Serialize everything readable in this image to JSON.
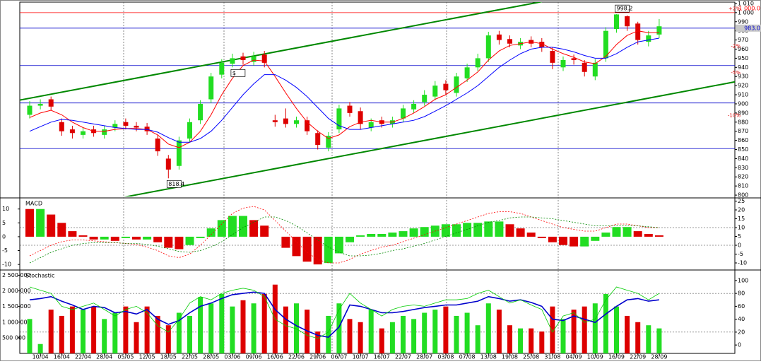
{
  "chart_data": {
    "type": "candlestick",
    "categories": [
      null,
      "10/04",
      null,
      "16/04",
      null,
      "22/04",
      null,
      "28/04",
      null,
      "05/05",
      null,
      "12/05",
      null,
      "18/05",
      null,
      "22/05",
      null,
      "28/05",
      null,
      "03/06",
      null,
      "09/06",
      null,
      "16/06",
      null,
      "22/06",
      null,
      "29/06",
      null,
      "06/07",
      null,
      "10/07",
      null,
      "16/07",
      null,
      "22/07",
      null,
      "28/07",
      null,
      "03/08",
      null,
      "07/08",
      null,
      "13/08",
      null,
      "19/08",
      null,
      "25/08",
      null,
      "31/08",
      null,
      "04/09",
      null,
      "10/09",
      null,
      "16/09",
      null,
      "22/09",
      null,
      "28/09"
    ],
    "open": [
      888,
      898,
      905,
      880,
      872,
      866,
      872,
      866,
      874,
      880,
      876,
      875,
      862,
      840,
      832,
      862,
      882,
      905,
      932,
      944,
      952,
      946,
      954,
      882,
      884,
      878,
      882,
      868,
      852,
      872,
      898,
      892,
      874,
      882,
      878,
      884,
      894,
      902,
      908,
      922,
      912,
      928,
      940,
      950,
      976,
      971,
      964,
      970,
      968,
      958,
      940,
      950,
      945,
      930,
      950,
      982,
      996,
      988,
      968,
      976
    ],
    "high": [
      903,
      905,
      908,
      884,
      876,
      874,
      876,
      876,
      882,
      884,
      880,
      879,
      866,
      844,
      864,
      884,
      904,
      934,
      949,
      955,
      956,
      957,
      958,
      888,
      895,
      886,
      886,
      871,
      869,
      899,
      902,
      896,
      884,
      886,
      886,
      899,
      904,
      915,
      925,
      926,
      934,
      944,
      955,
      979,
      980,
      975,
      972,
      974,
      972,
      962,
      952,
      954,
      948,
      949,
      984,
      998.2,
      997,
      990,
      980,
      993
    ],
    "low": [
      884,
      894,
      893,
      865,
      862,
      862,
      864,
      862,
      870,
      872,
      870,
      866,
      843,
      818.4,
      828,
      858,
      878,
      901,
      928,
      940,
      943,
      942,
      940,
      875,
      874,
      874,
      866,
      850,
      848,
      868,
      886,
      872,
      870,
      874,
      874,
      880,
      890,
      898,
      904,
      910,
      908,
      924,
      936,
      946,
      965,
      962,
      960,
      962,
      957,
      938,
      936,
      943,
      930,
      926,
      946,
      978,
      980,
      965,
      963,
      972
    ],
    "close": [
      898,
      900,
      897,
      870,
      868,
      870,
      868,
      872,
      878,
      876,
      874,
      870,
      848,
      828,
      860,
      880,
      900,
      930,
      945,
      950,
      948,
      952,
      945,
      880,
      878,
      882,
      870,
      855,
      865,
      895,
      890,
      878,
      880,
      878,
      882,
      895,
      900,
      910,
      920,
      915,
      930,
      940,
      950,
      975,
      970,
      966,
      968,
      966,
      962,
      945,
      948,
      948,
      935,
      945,
      980,
      998,
      985,
      970,
      975,
      985
    ],
    "up_color": "#22dd22",
    "down_color": "#dd0000",
    "ylim": [
      798.5,
      1011.5
    ],
    "yticks": [
      800,
      810,
      820,
      830,
      840,
      850,
      860,
      870,
      880,
      890,
      900,
      910,
      920,
      930,
      940,
      950,
      960,
      970,
      980,
      990,
      {
        "value": 1000,
        "label": "1 000"
      },
      {
        "value": 1010,
        "label": "1 010"
      }
    ],
    "moving_averages": [
      {
        "color": "#ff0000",
        "values": [
          885,
          890,
          893,
          888,
          880,
          874,
          870,
          870,
          872,
          873,
          873,
          872,
          866,
          856,
          852,
          858,
          870,
          888,
          910,
          928,
          942,
          948,
          947,
          930,
          912,
          895,
          880,
          870,
          862,
          866,
          875,
          880,
          882,
          880,
          880,
          884,
          890,
          897,
          905,
          910,
          918,
          926,
          935,
          948,
          958,
          964,
          966,
          968,
          966,
          960,
          955,
          951,
          946,
          944,
          952,
          965,
          975,
          980,
          978,
          978
        ]
      },
      {
        "color": "#0000ff",
        "values": [
          870,
          875,
          880,
          883,
          882,
          880,
          878,
          876,
          874,
          873,
          872,
          872,
          869,
          863,
          858,
          858,
          862,
          870,
          882,
          896,
          910,
          922,
          932,
          932,
          926,
          918,
          908,
          896,
          884,
          876,
          872,
          872,
          874,
          876,
          878,
          880,
          882,
          886,
          892,
          898,
          905,
          912,
          920,
          930,
          940,
          948,
          955,
          960,
          962,
          962,
          960,
          957,
          953,
          950,
          950,
          955,
          962,
          968,
          970,
          972
        ]
      }
    ],
    "hlines": [
      {
        "value": 1000,
        "color": "#ff0000",
        "label": "1 000.0"
      },
      {
        "value": 983,
        "color": "#0000cc",
        "label": "983.0"
      },
      {
        "value": 942,
        "color": "#0000cc"
      },
      {
        "value": 901,
        "color": "#0000cc"
      },
      {
        "value": 851,
        "color": "#0000cc"
      }
    ],
    "levels": [
      {
        "value": 1004,
        "label": "+2%"
      },
      {
        "value": 963,
        "label": "-2%"
      },
      {
        "value": 934,
        "label": "-5%"
      },
      {
        "value": 887,
        "label": "-10%"
      }
    ],
    "annotations": [
      {
        "label": "818.4",
        "value": 818.4
      },
      {
        "label": "998.2",
        "value": 998.2
      },
      {
        "label": "$",
        "value": 940,
        "color": "#009900"
      }
    ],
    "trendlines": [
      {
        "color": "#008800",
        "x": [
          -1,
          48
        ],
        "y": [
          904,
          1012
        ]
      },
      {
        "color": "#008800",
        "x": [
          8.5,
          67.4
        ],
        "y": [
          797,
          927
        ]
      }
    ],
    "macd": {
      "title": "MACD",
      "histogram": [
        10,
        10,
        8,
        5,
        2,
        0.5,
        -1,
        -1,
        -1.5,
        -0.5,
        -1,
        -1,
        -2,
        -4,
        -4.5,
        -3,
        -0.5,
        3,
        6,
        7.5,
        7.5,
        6,
        4,
        0,
        -4,
        -7,
        -9,
        -10,
        -9.5,
        -6,
        -2,
        0.5,
        1,
        1,
        1.5,
        2,
        3,
        3.5,
        4,
        4.5,
        4.5,
        5,
        5,
        5.5,
        5.5,
        4.5,
        3,
        1.5,
        -0.5,
        -2,
        -3,
        -3.5,
        -3.5,
        -1.5,
        1.5,
        3.5,
        3.5,
        2,
        1,
        0.5
      ],
      "ylim": [
        -11.5,
        13.5
      ],
      "yticks": [
        -10,
        -5,
        0,
        5,
        10
      ],
      "y2lim": [
        -13.2,
        26
      ],
      "y2ticks": [
        -10,
        -5,
        0,
        5,
        10,
        15,
        20,
        25
      ],
      "series": [
        {
          "color": "#ff0000",
          "axis": "y2",
          "values": [
            -6,
            -3,
            0,
            2,
            3,
            3,
            2.5,
            2,
            1.5,
            1,
            0.5,
            -1,
            -3,
            -6,
            -7,
            -5,
            0,
            6,
            12,
            18,
            21,
            22,
            20,
            14,
            8,
            2,
            -4,
            -8,
            -10,
            -10,
            -8,
            -5,
            -3,
            -1,
            0,
            2,
            4,
            6,
            8,
            10,
            12,
            14,
            16,
            18,
            19,
            19,
            18,
            16,
            14,
            12,
            10,
            9,
            8,
            8,
            10,
            12,
            12,
            11,
            10,
            10
          ]
        },
        {
          "color": "#008800",
          "axis": "y2",
          "values": [
            -10,
            -7,
            -4,
            -2,
            0,
            1,
            1.5,
            1.5,
            1.5,
            1,
            1,
            0.5,
            -0.5,
            -2,
            -3.5,
            -4,
            -3,
            -1,
            2,
            6,
            10,
            13,
            16,
            16,
            14,
            11,
            7,
            3,
            -1,
            -4,
            -6,
            -6,
            -5.5,
            -4.5,
            -3,
            -2,
            -0.5,
            1,
            3,
            5,
            7,
            9,
            11,
            13,
            14,
            15.5,
            16,
            16,
            15.5,
            15,
            14,
            13,
            12,
            11,
            11,
            11,
            11,
            11,
            10.5,
            10
          ]
        }
      ]
    },
    "stochastic": {
      "title": "Stochastic",
      "volume": [
        1100000,
        300000,
        1400000,
        1200000,
        1500000,
        1400000,
        1500000,
        1100000,
        1300000,
        1500000,
        1000000,
        1500000,
        1200000,
        900000,
        1300000,
        1200000,
        1800000,
        1600000,
        1900000,
        1500000,
        1700000,
        1600000,
        1900000,
        2200000,
        1500000,
        1600000,
        1400000,
        700000,
        1200000,
        1600000,
        1100000,
        1000000,
        1400000,
        800000,
        1000000,
        1200000,
        1100000,
        1300000,
        1400000,
        1500000,
        1200000,
        1300000,
        900000,
        1600000,
        1400000,
        900000,
        800000,
        800000,
        700000,
        1500000,
        1100000,
        1400000,
        1500000,
        1600000,
        1900000,
        1500000,
        1200000,
        1000000,
        900000,
        800000
      ],
      "ylim": [
        0,
        2600000
      ],
      "yticks": [
        {
          "value": 500000,
          "label": "500 000"
        },
        {
          "value": 1000000,
          "label": "1 000 000"
        },
        {
          "value": 1500000,
          "label": "1 500 000"
        },
        {
          "value": 2000000,
          "label": "2 000 000"
        },
        {
          "value": 2500000,
          "label": "2 500 000"
        }
      ],
      "y2lim": [
        -13,
        113
      ],
      "y2ticks": [
        0,
        20,
        40,
        60,
        80,
        100
      ],
      "series": [
        {
          "color": "#0000cc",
          "axis": "y2",
          "values": [
            70,
            72,
            75,
            68,
            62,
            55,
            60,
            58,
            50,
            52,
            48,
            55,
            40,
            32,
            38,
            50,
            60,
            65,
            72,
            78,
            80,
            82,
            80,
            55,
            40,
            30,
            22,
            15,
            12,
            28,
            62,
            60,
            55,
            50,
            50,
            52,
            55,
            58,
            60,
            62,
            62,
            65,
            68,
            75,
            72,
            68,
            70,
            66,
            60,
            40,
            38,
            45,
            40,
            35,
            48,
            60,
            70,
            72,
            68,
            70
          ]
        },
        {
          "color": "#00cc00",
          "axis": "y2",
          "values": [
            90,
            85,
            80,
            60,
            55,
            60,
            65,
            55,
            45,
            55,
            60,
            50,
            30,
            20,
            40,
            65,
            75,
            70,
            80,
            85,
            88,
            85,
            75,
            40,
            30,
            25,
            15,
            10,
            20,
            55,
            80,
            65,
            55,
            45,
            55,
            60,
            62,
            60,
            65,
            70,
            70,
            72,
            80,
            85,
            75,
            65,
            70,
            62,
            55,
            20,
            45,
            50,
            35,
            40,
            70,
            90,
            85,
            80,
            70,
            80
          ]
        }
      ]
    }
  }
}
